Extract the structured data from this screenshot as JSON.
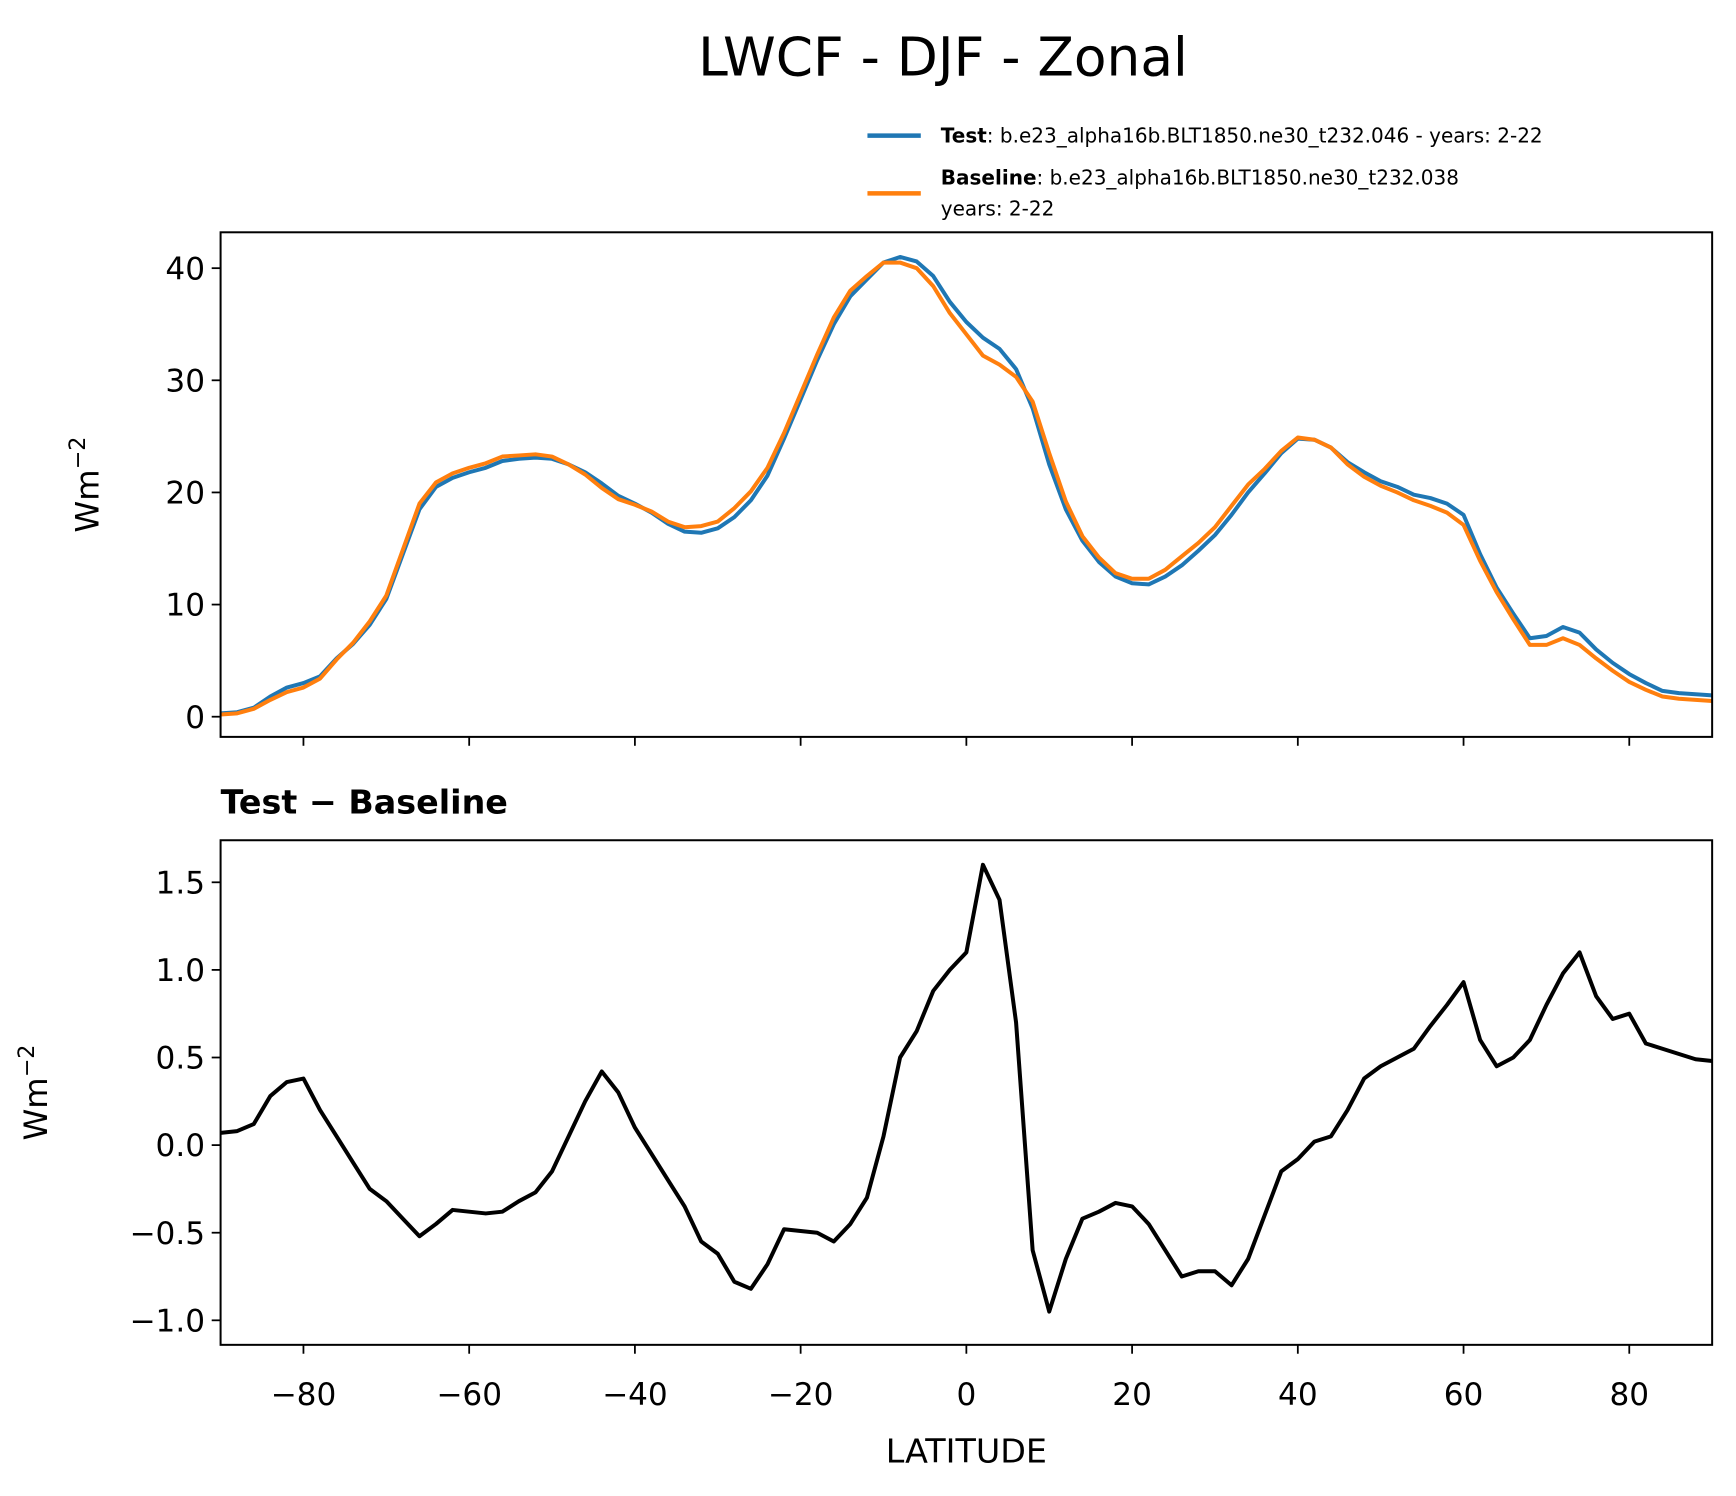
{
  "chart_data": [
    {
      "type": "line",
      "title": "LWCF - DJF - Zonal",
      "ylabel": "Wm",
      "ylabel_superscript": "−2",
      "x": [
        -90,
        -88,
        -86,
        -84,
        -82,
        -80,
        -78,
        -76,
        -74,
        -72,
        -70,
        -68,
        -66,
        -64,
        -62,
        -60,
        -58,
        -56,
        -54,
        -52,
        -50,
        -48,
        -46,
        -44,
        -42,
        -40,
        -38,
        -36,
        -34,
        -32,
        -30,
        -28,
        -26,
        -24,
        -22,
        -20,
        -18,
        -16,
        -14,
        -12,
        -10,
        -8,
        -6,
        -4,
        -2,
        0,
        2,
        4,
        6,
        8,
        10,
        12,
        14,
        16,
        18,
        20,
        22,
        24,
        26,
        28,
        30,
        32,
        34,
        36,
        38,
        40,
        42,
        44,
        46,
        48,
        50,
        52,
        54,
        56,
        58,
        60,
        62,
        64,
        66,
        68,
        70,
        72,
        74,
        76,
        78,
        80,
        82,
        84,
        86,
        88,
        90
      ],
      "series": [
        {
          "name": "Test",
          "description": [
            ": b.e23_alpha16b.BLT1850.ne30_t232.046 - years: 2-22"
          ],
          "color": "#1f77b4",
          "values": [
            0.3,
            0.4,
            0.8,
            1.8,
            2.6,
            3.0,
            3.6,
            5.2,
            6.5,
            8.2,
            10.5,
            14.5,
            18.5,
            20.5,
            21.3,
            21.8,
            22.2,
            22.8,
            23.0,
            23.1,
            23.0,
            22.5,
            21.8,
            20.8,
            19.7,
            19.0,
            18.2,
            17.2,
            16.5,
            16.4,
            16.8,
            17.8,
            19.3,
            21.5,
            24.8,
            28.3,
            31.8,
            35.0,
            37.5,
            39.0,
            40.5,
            41.0,
            40.6,
            39.3,
            37.0,
            35.2,
            33.8,
            32.8,
            31.0,
            27.5,
            22.5,
            18.5,
            15.7,
            13.8,
            12.5,
            11.9,
            11.8,
            12.5,
            13.5,
            14.8,
            16.2,
            18.0,
            20.0,
            21.7,
            23.5,
            24.8,
            24.7,
            24.0,
            22.7,
            21.8,
            21.0,
            20.5,
            19.8,
            19.5,
            19.0,
            18.0,
            14.5,
            11.5,
            9.2,
            7.0,
            7.2,
            8.0,
            7.5,
            6.0,
            4.8,
            3.8,
            3.0,
            2.3,
            2.1,
            2.0,
            1.9
          ]
        },
        {
          "name": "Baseline",
          "description": [
            ": b.e23_alpha16b.BLT1850.ne30_t232.038",
            "years: 2-22"
          ],
          "color": "#ff7f0e",
          "values": [
            0.2,
            0.3,
            0.7,
            1.5,
            2.2,
            2.6,
            3.4,
            5.1,
            6.6,
            8.5,
            10.8,
            14.9,
            19.0,
            20.9,
            21.7,
            22.2,
            22.6,
            23.2,
            23.3,
            23.4,
            23.2,
            22.5,
            21.6,
            20.4,
            19.4,
            18.9,
            18.3,
            17.4,
            16.9,
            17.0,
            17.4,
            18.6,
            20.1,
            22.2,
            25.3,
            28.8,
            32.3,
            35.6,
            38.0,
            39.3,
            40.5,
            40.5,
            40.0,
            38.4,
            36.0,
            34.1,
            32.2,
            31.4,
            30.3,
            28.1,
            23.5,
            19.2,
            16.1,
            14.2,
            12.8,
            12.3,
            12.3,
            13.1,
            14.3,
            15.5,
            16.9,
            18.8,
            20.7,
            22.1,
            23.7,
            24.9,
            24.7,
            24.0,
            22.5,
            21.4,
            20.6,
            20.0,
            19.3,
            18.8,
            18.2,
            17.1,
            13.9,
            11.1,
            8.7,
            6.4,
            6.4,
            7.0,
            6.4,
            5.2,
            4.1,
            3.1,
            2.4,
            1.8,
            1.6,
            1.5,
            1.4
          ]
        }
      ],
      "xlim": [
        -90,
        90
      ],
      "xticks": [
        -80,
        -60,
        -40,
        -20,
        0,
        20,
        40,
        60,
        80
      ],
      "show_xtick_labels": false,
      "ylim": [
        -1.8,
        43.2
      ],
      "yticks": [
        0,
        10,
        20,
        30,
        40
      ],
      "legend": "upper right"
    },
    {
      "type": "line",
      "title": "Test − Baseline",
      "xlabel": "LATITUDE",
      "ylabel": "Wm",
      "ylabel_superscript": "−2",
      "x": [
        -90,
        -88,
        -86,
        -84,
        -82,
        -80,
        -78,
        -76,
        -74,
        -72,
        -70,
        -68,
        -66,
        -64,
        -62,
        -60,
        -58,
        -56,
        -54,
        -52,
        -50,
        -48,
        -46,
        -44,
        -42,
        -40,
        -38,
        -36,
        -34,
        -32,
        -30,
        -28,
        -26,
        -24,
        -22,
        -20,
        -18,
        -16,
        -14,
        -12,
        -10,
        -8,
        -6,
        -4,
        -2,
        0,
        2,
        4,
        6,
        8,
        10,
        12,
        14,
        16,
        18,
        20,
        22,
        24,
        26,
        28,
        30,
        32,
        34,
        36,
        38,
        40,
        42,
        44,
        46,
        48,
        50,
        52,
        54,
        56,
        58,
        60,
        62,
        64,
        66,
        68,
        70,
        72,
        74,
        76,
        78,
        80,
        82,
        84,
        86,
        88,
        90
      ],
      "series": [
        {
          "color": "#000000",
          "values": [
            0.07,
            0.08,
            0.12,
            0.28,
            0.36,
            0.38,
            0.2,
            0.05,
            -0.1,
            -0.25,
            -0.32,
            -0.42,
            -0.52,
            -0.45,
            -0.37,
            -0.38,
            -0.39,
            -0.38,
            -0.32,
            -0.27,
            -0.15,
            0.05,
            0.25,
            0.42,
            0.3,
            0.1,
            -0.05,
            -0.2,
            -0.35,
            -0.55,
            -0.62,
            -0.78,
            -0.82,
            -0.68,
            -0.48,
            -0.49,
            -0.5,
            -0.55,
            -0.45,
            -0.3,
            0.05,
            0.5,
            0.65,
            0.88,
            1.0,
            1.1,
            1.6,
            1.4,
            0.7,
            -0.6,
            -0.95,
            -0.65,
            -0.42,
            -0.38,
            -0.33,
            -0.35,
            -0.45,
            -0.6,
            -0.75,
            -0.72,
            -0.72,
            -0.8,
            -0.65,
            -0.4,
            -0.15,
            -0.08,
            0.02,
            0.05,
            0.2,
            0.38,
            0.45,
            0.5,
            0.55,
            0.68,
            0.8,
            0.93,
            0.6,
            0.45,
            0.5,
            0.6,
            0.8,
            0.98,
            1.1,
            0.85,
            0.72,
            0.75,
            0.58,
            0.55,
            0.52,
            0.49,
            0.48
          ]
        }
      ],
      "xlim": [
        -90,
        90
      ],
      "xticks": [
        {
          "value": -80,
          "label": "−80"
        },
        {
          "value": -60,
          "label": "−60"
        },
        {
          "value": -40,
          "label": "−40"
        },
        {
          "value": -20,
          "label": "−20"
        },
        0,
        20,
        40,
        60,
        80
      ],
      "show_xtick_labels": true,
      "ylim": [
        -1.14,
        1.74
      ],
      "yticks": [
        {
          "value": -1,
          "label": "−1.0"
        },
        {
          "value": -0.5,
          "label": "−0.5"
        },
        {
          "value": 0,
          "label": "0.0"
        },
        0.5,
        {
          "value": 1,
          "label": "1.0"
        },
        1.5
      ]
    }
  ]
}
